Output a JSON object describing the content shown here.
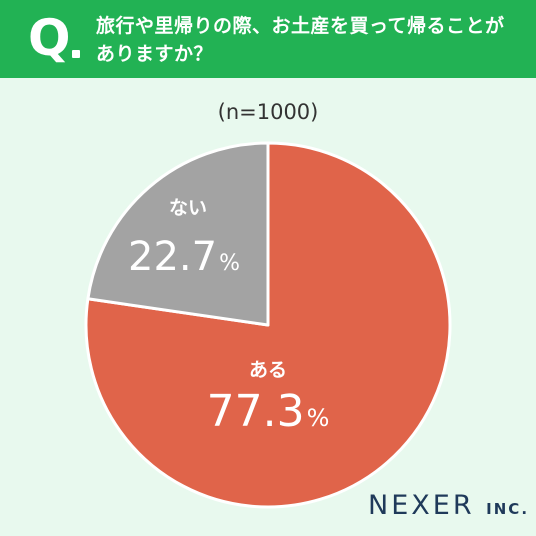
{
  "header": {
    "q_mark": "Q",
    "question_line1": "旅行や里帰りの際、お土産を買って帰ることが",
    "question_line2": "ありますか？"
  },
  "sample_label": "(n=1000)",
  "logo": {
    "name": "NEXER",
    "suffix": "INC."
  },
  "colors": {
    "header_bg": "#22b254",
    "page_bg": "#e8f9ee",
    "slice_aru": "#e0644a",
    "slice_nai": "#a3a3a3",
    "logo": "#1f3a5a"
  },
  "chart_data": {
    "type": "pie",
    "title": "",
    "slices": [
      {
        "label": "ある",
        "value": 77.3,
        "value_text": "77.3",
        "unit": "%",
        "color": "#e0644a"
      },
      {
        "label": "ない",
        "value": 22.7,
        "value_text": "22.7",
        "unit": "%",
        "color": "#a3a3a3"
      }
    ],
    "start": "12 o'clock",
    "direction": "clockwise"
  }
}
